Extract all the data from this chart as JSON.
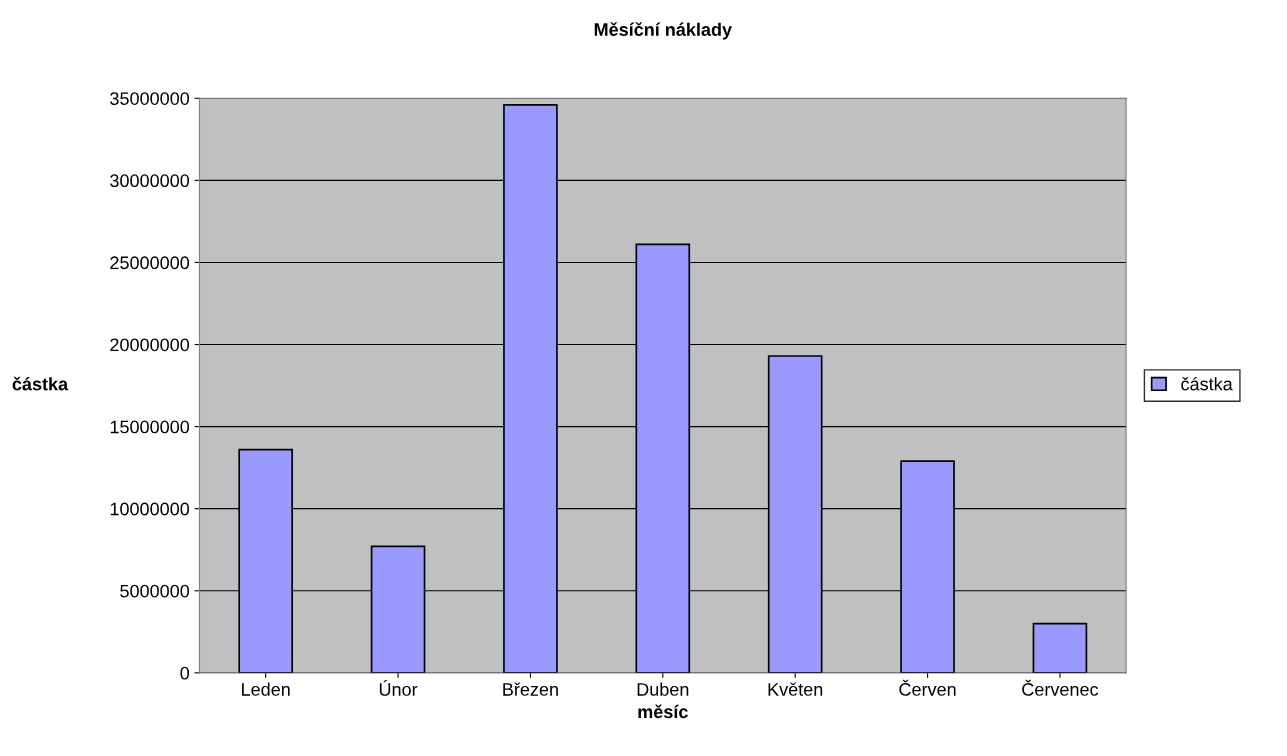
{
  "chart_data": {
    "type": "bar",
    "title": "Měsíční náklady",
    "xlabel": "měsíc",
    "ylabel": "částka",
    "categories": [
      "Leden",
      "Únor",
      "Březen",
      "Duben",
      "Květen",
      "Červen",
      "Červenec"
    ],
    "series": [
      {
        "name": "částka",
        "color": "#9999ff",
        "values": [
          13600000,
          7700000,
          34600000,
          26100000,
          19300000,
          12900000,
          3000000
        ]
      }
    ],
    "ylim": [
      0,
      35000000
    ],
    "yticks": [
      0,
      5000000,
      10000000,
      15000000,
      20000000,
      25000000,
      30000000,
      35000000
    ],
    "grid": "y",
    "legend": "right"
  }
}
